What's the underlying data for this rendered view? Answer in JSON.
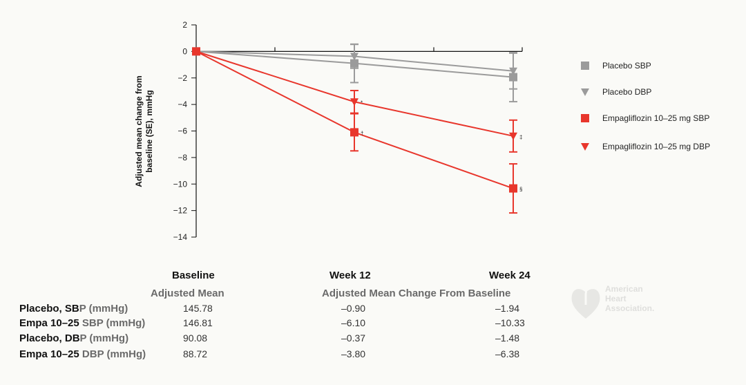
{
  "chart_data": {
    "type": "line",
    "x_positions": [
      "Baseline",
      "Week 12",
      "Week 24"
    ],
    "ylabel_line1": "Adjusted mean change from",
    "ylabel_line2": "baseline (SE), mmHg",
    "ylim": [
      -14,
      2
    ],
    "yticks": [
      2,
      0,
      -2,
      -4,
      -6,
      -8,
      -10,
      -12,
      -14
    ],
    "ytick_labels": [
      "2",
      "0",
      "−2",
      "−4",
      "−6",
      "−8",
      "−10",
      "−12",
      "−14"
    ],
    "legend_position": "right",
    "series": [
      {
        "name": "Placebo SBP",
        "marker": "square",
        "color": "#9b9b9b",
        "values": [
          0,
          -0.9,
          -1.94
        ],
        "se": [
          0,
          1.45,
          1.85
        ],
        "annotations": [
          "",
          "",
          ""
        ]
      },
      {
        "name": "Placebo DBP",
        "marker": "triangle-down",
        "color": "#9b9b9b",
        "values": [
          0,
          -0.37,
          -1.48
        ],
        "se": [
          0,
          0.9,
          1.35
        ],
        "annotations": [
          "",
          "",
          ""
        ]
      },
      {
        "name": "Empagliflozin 10–25 mg SBP",
        "marker": "square",
        "color": "#e8362c",
        "values": [
          0,
          -6.1,
          -10.33
        ],
        "se": [
          0,
          1.4,
          1.85
        ],
        "annotations": [
          "",
          "†",
          "§"
        ]
      },
      {
        "name": "Empagliflozin 10–25 mg DBP",
        "marker": "triangle-down",
        "color": "#e8362c",
        "values": [
          0,
          -3.8,
          -6.38
        ],
        "se": [
          0,
          0.85,
          1.2
        ],
        "annotations": [
          "",
          "*",
          "‡"
        ]
      }
    ]
  },
  "table": {
    "headers": [
      "Baseline",
      "Week 12",
      "Week 24"
    ],
    "sub_baseline": "Adjusted Mean",
    "sub_change": "Adjusted Mean Change From Baseline",
    "rows": [
      {
        "label_a": "Placebo, SB",
        "label_b": "P (mmHg)",
        "baseline": "145.78",
        "w12": "–0.90",
        "w24": "–1.94"
      },
      {
        "label_a": "Empa 10–25 ",
        "label_b": "SBP (mmHg)",
        "baseline": "146.81",
        "w12": "–6.10",
        "w24": "–10.33"
      },
      {
        "label_a": "Placebo, DB",
        "label_b": "P (mmHg)",
        "baseline": "90.08",
        "w12": "–0.37",
        "w24": "–1.48"
      },
      {
        "label_a": "Empa 10–25 ",
        "label_b": "DBP (mmHg)",
        "baseline": "88.72",
        "w12": "–3.80",
        "w24": "–6.38"
      }
    ]
  },
  "watermark": {
    "line1": "American",
    "line2": "Heart",
    "line3": "Association."
  }
}
